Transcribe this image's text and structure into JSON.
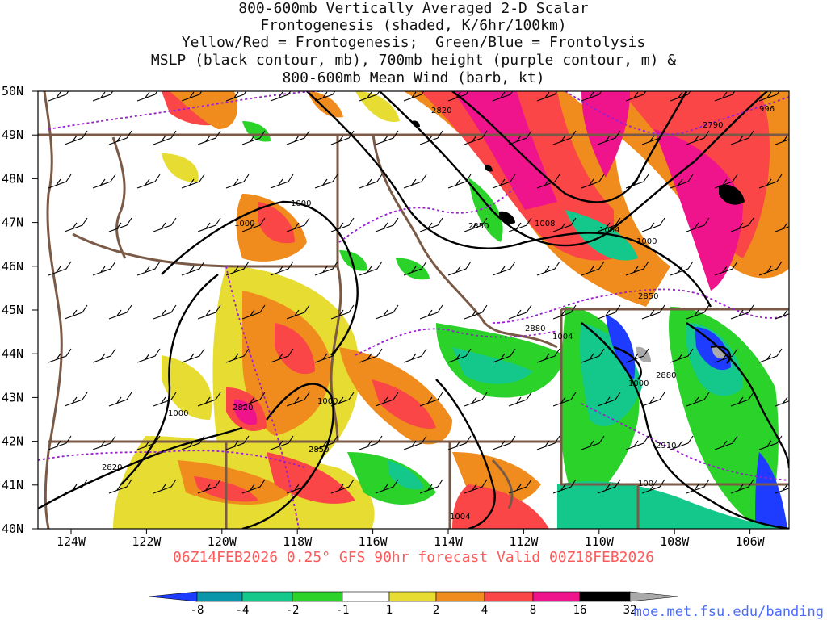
{
  "title": {
    "lines": [
      "800-600mb Vertically Averaged 2-D Scalar",
      "Frontogenesis (shaded, K/6hr/100km)",
      "Yellow/Red = Frontogenesis;  Green/Blue = Frontolysis",
      "MSLP (black contour, mb), 700mb height (purple contour, m) &",
      "800-600mb Mean Wind (barb, kt)"
    ]
  },
  "footer": "06Z14FEB2026 0.25° GFS 90hr forecast Valid 00Z18FEB2026",
  "site": "moe.met.fsu.edu/banding",
  "map": {
    "lat_labels": [
      "50N",
      "49N",
      "48N",
      "47N",
      "46N",
      "45N",
      "44N",
      "43N",
      "42N",
      "41N",
      "40N"
    ],
    "lon_labels": [
      "124W",
      "122W",
      "120W",
      "118W",
      "116W",
      "114W",
      "112W",
      "110W",
      "108W",
      "106W"
    ],
    "mslp_labels": [
      "996",
      "1000",
      "1000",
      "1000",
      "1000",
      "1000",
      "1000",
      "1004",
      "1004",
      "1004",
      "1004",
      "1008"
    ],
    "height_labels": [
      "2820",
      "2820",
      "2820",
      "2790",
      "2850",
      "2850",
      "2850",
      "2880",
      "2880",
      "2910"
    ]
  },
  "colorbar": {
    "labels": [
      "-8",
      "-4",
      "-2",
      "-1",
      "1",
      "2",
      "4",
      "8",
      "16",
      "32"
    ],
    "colors": [
      "#1e3cff",
      "#0a96aa",
      "#14c88c",
      "#2ad22a",
      "#ffffff",
      "#e6dc32",
      "#f08c1e",
      "#fa4646",
      "#f0148c",
      "#000000",
      "#aaaaaa"
    ]
  },
  "colors": {
    "boundary": "#7a5a46",
    "mslp": "#000000",
    "height": "#9b1fd0",
    "footer": "#ff5a5a",
    "link": "#4a6cff"
  }
}
